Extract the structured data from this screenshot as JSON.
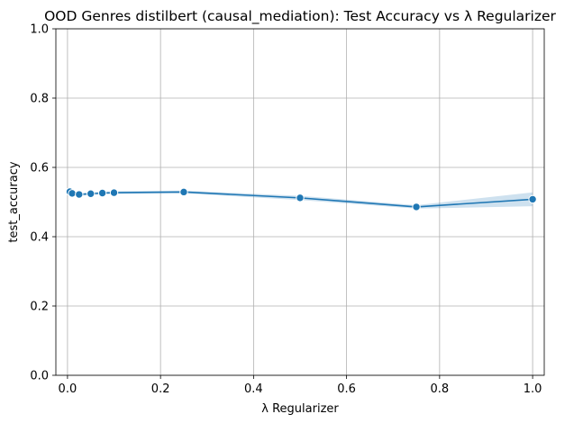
{
  "chart_data": {
    "type": "line",
    "title": "OOD Genres distilbert (causal_mediation): Test Accuracy vs λ Regularizer",
    "xlabel": "λ Regularizer",
    "ylabel": "test_accuracy",
    "xlim": [
      -0.025,
      1.025
    ],
    "ylim": [
      0,
      1
    ],
    "xticks": [
      0.0,
      0.2,
      0.4,
      0.6,
      0.8,
      1.0
    ],
    "xtick_labels": [
      "0.0",
      "0.2",
      "0.4",
      "0.6",
      "0.8",
      "1.0"
    ],
    "yticks": [
      0.0,
      0.2,
      0.4,
      0.6,
      0.8,
      1.0
    ],
    "ytick_labels": [
      "0.0",
      "0.2",
      "0.4",
      "0.6",
      "0.8",
      "1.0"
    ],
    "grid": true,
    "legend": "none",
    "series": [
      {
        "color": "#1f77b4",
        "marker": "circle",
        "x": [
          0.005,
          0.01,
          0.025,
          0.05,
          0.075,
          0.1,
          0.25,
          0.5,
          0.75,
          1.0
        ],
        "y": [
          0.53,
          0.525,
          0.522,
          0.524,
          0.526,
          0.527,
          0.529,
          0.512,
          0.486,
          0.508
        ],
        "ci_lower": [
          0.524,
          0.52,
          0.518,
          0.52,
          0.522,
          0.523,
          0.525,
          0.506,
          0.481,
          0.488
        ],
        "ci_upper": [
          0.536,
          0.53,
          0.526,
          0.528,
          0.53,
          0.531,
          0.533,
          0.518,
          0.491,
          0.528
        ]
      }
    ]
  }
}
